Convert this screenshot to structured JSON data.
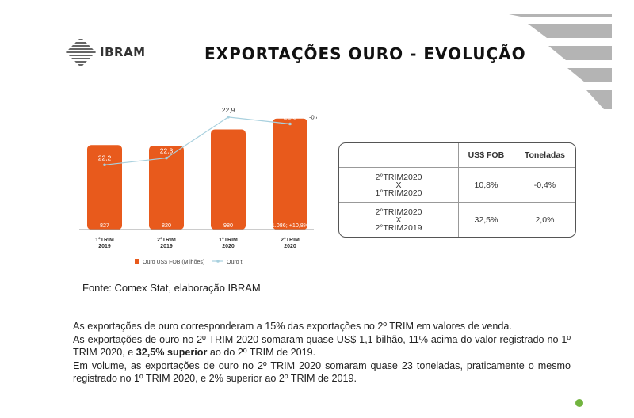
{
  "header": {
    "logo_text": "IBRAM",
    "title": "EXPORTAÇÕES OURO - EVOLUÇÃO"
  },
  "colors": {
    "bar": "#e85a1c",
    "line": "#a8d0de",
    "logo": "#333333",
    "accent_dot": "#72b43f"
  },
  "chart_data": {
    "type": "bar",
    "categories": [
      [
        "1°TRIM",
        "2019"
      ],
      [
        "2°TRIM",
        "2019"
      ],
      [
        "1°TRIM",
        "2020"
      ],
      [
        "2°TRIM",
        "2020"
      ]
    ],
    "series": [
      {
        "name": "Ouro US$ FOB (Milhões)",
        "type": "bar",
        "values": [
          827,
          820,
          980,
          1086
        ],
        "labels": [
          "827",
          "820",
          "980",
          "1.086; +10,8%"
        ]
      },
      {
        "name": "Ouro t",
        "type": "line",
        "values": [
          22.2,
          22.3,
          22.9,
          22.8
        ],
        "labels": [
          "22,2",
          "22,3",
          "22,9",
          "22,8"
        ],
        "annotation": "-0,4%"
      }
    ],
    "legend_position": "bottom"
  },
  "comparison_table": {
    "headers": [
      "",
      "US$ FOB",
      "Toneladas"
    ],
    "rows": [
      {
        "label_lines": [
          "2°TRIM2020",
          "X",
          "1°TRIM2020"
        ],
        "fob": "10,8%",
        "ton": "-0,4%"
      },
      {
        "label_lines": [
          "2°TRIM2020",
          "X",
          "2°TRIM2019"
        ],
        "fob": "32,5%",
        "ton": "2,0%"
      }
    ]
  },
  "source": "Fonte: Comex Stat, elaboração IBRAM",
  "body": {
    "p1": "As exportações de ouro corresponderam a 15% das exportações no 2º TRIM em valores de venda.",
    "p2_a": "As exportações de ouro no 2º TRIM 2020 somaram quase US$ 1,1 bilhão, 11% acima do valor registrado no 1º TRIM 2020, e ",
    "p2_bold": "32,5% superior",
    "p2_b": " ao do 2º TRIM de 2019.",
    "p3": " Em volume, as exportações de ouro no 2º TRIM 2020 somaram quase 23 toneladas, praticamente o mesmo registrado no 1º TRIM 2020, e 2% superior ao 2º TRIM de 2019."
  }
}
